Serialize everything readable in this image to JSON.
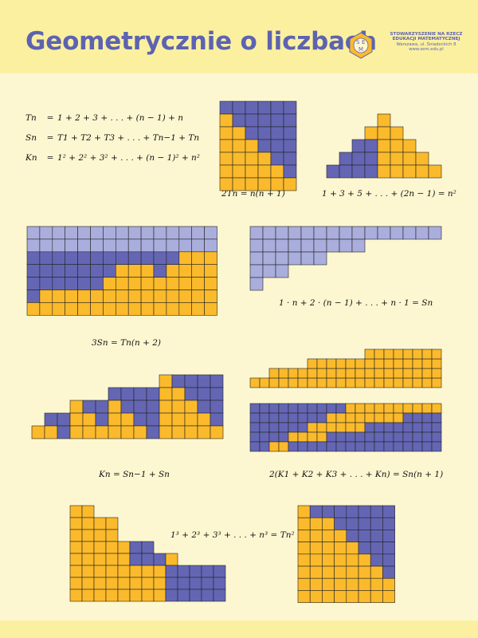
{
  "header": {
    "title": "Geometrycznie o liczbach",
    "logo_letters": [
      "S",
      "E",
      "M"
    ],
    "org_name_line1": "STOWARZYSZENIE NA RZECZ",
    "org_name_line2": "EDUKACJI MATEMATYCZNEJ",
    "org_address": "Warszawa, ul. Śniadeckich 8",
    "org_url": "www.sem.edu.pl"
  },
  "definitions": {
    "T": {
      "lhs": "Tn",
      "rhs": "1 + 2 + 3 + . . . + (n − 1) + n"
    },
    "S": {
      "lhs": "Sn",
      "rhs": "T1 + T2 + T3 + . . . + Tn−1 + Tn"
    },
    "K": {
      "lhs": "Kn",
      "rhs": "1² + 2² + 3² + . . . + (n − 1)² + n²"
    }
  },
  "captions": {
    "two_triangles": "2Tn = n(n + 1)",
    "odd_sum": "1 + 3 + 5 + . . . + (2n − 1) = n²",
    "weighted_sum": "1 · n + 2 · (n − 1) + . . . + n · 1 = Sn",
    "three_tetra": "3Sn = Tn(n + 2)",
    "squares": "Kn = Sn−1 + Sn",
    "sum_k": "2(K1 + K2 + K3 + . . . + Kn) = Sn(n + 1)",
    "cubes": "1³ + 2³ + 3³ + . . . + n³ = Tn²"
  },
  "colors": {
    "background": "#fdf7d1",
    "band": "#fbf0a0",
    "title": "#5d63b0",
    "blue": "#6466b4",
    "light_blue": "#aaaedd",
    "gold": "#fbba2b",
    "grid_line": "#222222"
  }
}
